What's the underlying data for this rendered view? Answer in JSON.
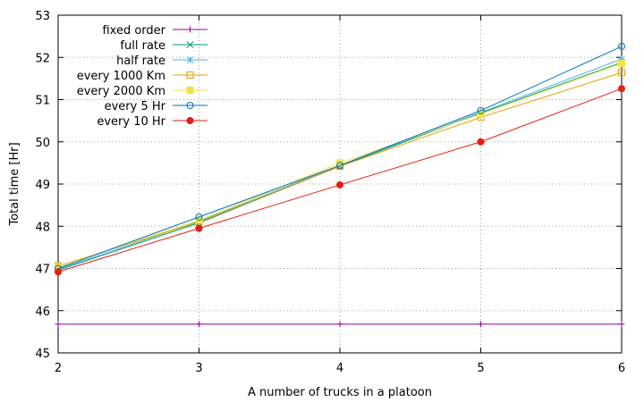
{
  "chart_data": {
    "type": "line",
    "xlabel": "A number of trucks in a platoon",
    "ylabel": "Total time [Hr]",
    "xlim": [
      2,
      6
    ],
    "ylim": [
      45,
      53
    ],
    "x_ticks": [
      2,
      3,
      4,
      5,
      6
    ],
    "y_ticks": [
      45,
      46,
      47,
      48,
      49,
      50,
      51,
      52,
      53
    ],
    "grid": true,
    "legend_position": "top-left",
    "x": [
      2,
      3,
      4,
      5,
      6
    ],
    "series": [
      {
        "name": "fixed order",
        "marker": "plus",
        "color": "#94009b",
        "values": [
          45.68,
          45.68,
          45.68,
          45.68,
          45.68
        ]
      },
      {
        "name": "full rate",
        "marker": "cross",
        "color": "#009e73",
        "values": [
          46.96,
          48.08,
          49.42,
          50.68,
          51.88
        ]
      },
      {
        "name": "half rate",
        "marker": "star",
        "color": "#56b4e9",
        "values": [
          46.98,
          48.12,
          49.44,
          50.7,
          51.96
        ]
      },
      {
        "name": "every 1000 Km",
        "marker": "square-open",
        "color": "#e69f00",
        "values": [
          47.06,
          48.1,
          49.42,
          50.58,
          51.64
        ]
      },
      {
        "name": "every 2000 Km",
        "marker": "square-filled",
        "color": "#f0e442",
        "values": [
          47.04,
          48.14,
          49.5,
          50.66,
          51.86
        ]
      },
      {
        "name": "every 5 Hr",
        "marker": "circle-open",
        "color": "#0072b2",
        "values": [
          47.0,
          48.22,
          49.44,
          50.74,
          52.26
        ]
      },
      {
        "name": "every 10 Hr",
        "marker": "circle-filled",
        "color": "#e51e10",
        "values": [
          46.92,
          47.95,
          48.98,
          50.0,
          51.26
        ]
      }
    ]
  }
}
